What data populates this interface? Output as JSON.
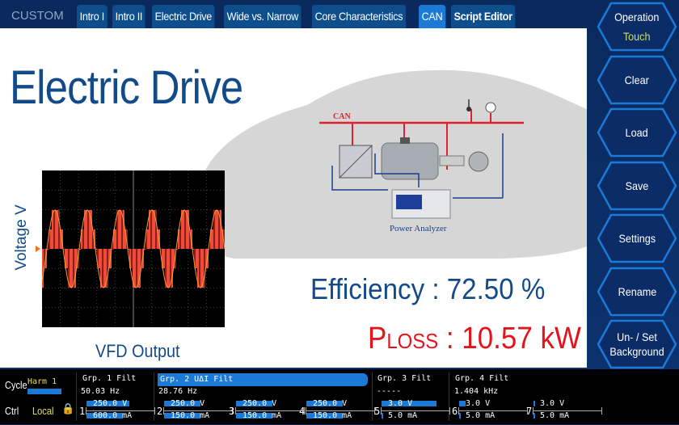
{
  "tabs": {
    "custom": "CUSTOM",
    "items": [
      {
        "label": "Intro I"
      },
      {
        "label": "Intro II"
      },
      {
        "label": "Electric Drive"
      },
      {
        "label": "Wide vs. Narrow"
      },
      {
        "label": "Core Characteristics"
      },
      {
        "label": "CAN",
        "active": true
      },
      {
        "label": "Script Editor"
      }
    ]
  },
  "main": {
    "title": "Electric Drive",
    "voltage_label": "Voltage V",
    "vfd_label": "VFD Output",
    "efficiency": "Efficiency : 72.50 %",
    "ploss_p": "P",
    "ploss_sub": "LOSS",
    "ploss_value": " : 10.57 kW",
    "diagram": {
      "can_label": "CAN",
      "analyzer_label": "Power Analyzer"
    }
  },
  "side_buttons": [
    {
      "label": "Operation",
      "sub": "Touch"
    },
    {
      "label": "Clear"
    },
    {
      "label": "Load"
    },
    {
      "label": "Save"
    },
    {
      "label": "Settings"
    },
    {
      "label": "Rename"
    },
    {
      "label": "Un- / Set Background"
    },
    {
      "label": ""
    }
  ],
  "status": {
    "cycle_label": "Cycle",
    "cycle_value": "Harm 1",
    "ctrl_label": "Ctrl",
    "ctrl_value": "Local",
    "groups": [
      {
        "title": "Grp. 1",
        "filt": "Filt",
        "freq": "50.03  Hz"
      },
      {
        "title": "Grp. 2",
        "extra": "UΔI",
        "filt": "Filt",
        "freq": "28.76  Hz"
      },
      {
        "title": "Grp. 3",
        "filt": "Filt",
        "freq": "-----"
      },
      {
        "title": "Grp. 4",
        "filt": "Filt",
        "freq": "1.404 kHz"
      }
    ],
    "elements": [
      {
        "num": "1",
        "v": "250.0 V",
        "i": "600.0 mA"
      },
      {
        "num": "2",
        "v": "250.0 V",
        "i": "150.0 mA"
      },
      {
        "num": "3",
        "v": "250.0 V",
        "i": "150.0 mA"
      },
      {
        "num": "4",
        "v": "250.0 V",
        "i": "150.0 mA"
      },
      {
        "num": "5",
        "v": "3.0 V",
        "i": "5.0 mA"
      },
      {
        "num": "6",
        "v": "3.0 V",
        "i": "5.0 mA"
      },
      {
        "num": "7",
        "v": "3.0 V",
        "i": "5.0 mA"
      }
    ]
  },
  "colors": {
    "background": "#0b2a5c",
    "tab": "#0f4e8c",
    "tab_active": "#1a7ad6",
    "title": "#134a8a",
    "ploss": "#e5141b",
    "waveform": "#f04a3a",
    "accent_yellow": "#c8e060"
  }
}
